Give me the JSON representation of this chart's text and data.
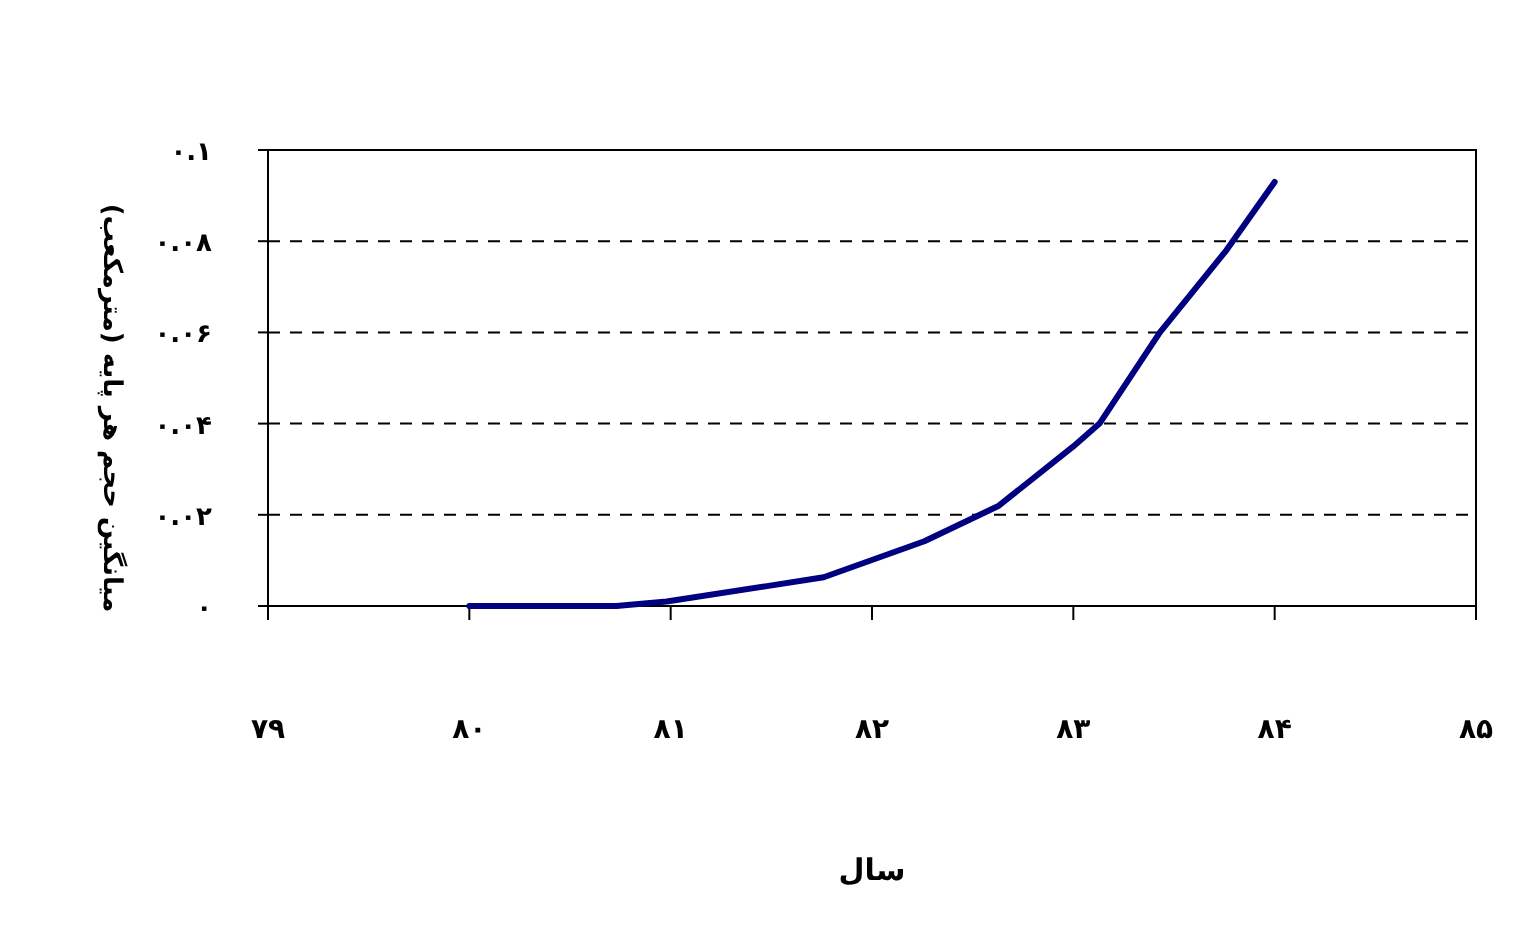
{
  "chart_data": {
    "type": "line",
    "xlabel": "سال",
    "ylabel": "میانگین حجم هر پایه (مترمکعب)",
    "x": [
      80,
      80.73,
      80.98,
      81.47,
      81.76,
      82.26,
      82.63,
      83.0,
      83.13,
      83.43,
      83.76,
      84.0
    ],
    "series": [
      {
        "color": "#000080",
        "values": [
          0,
          0,
          0.001,
          0.0043,
          0.0063,
          0.0142,
          0.022,
          0.035,
          0.04,
          0.06,
          0.078,
          0.093
        ]
      }
    ],
    "xlim": [
      79,
      85
    ],
    "xticks": [
      {
        "value": 79,
        "label": "۷۹"
      },
      {
        "value": 80,
        "label": "۸۰"
      },
      {
        "value": 81,
        "label": "۸۱"
      },
      {
        "value": 82,
        "label": "۸۲"
      },
      {
        "value": 83,
        "label": "۸۳"
      },
      {
        "value": 84,
        "label": "۸۴"
      },
      {
        "value": 85,
        "label": "۸۵"
      }
    ],
    "ylim": [
      0,
      0.1
    ],
    "yticks": [
      {
        "value": 0,
        "label": "۰"
      },
      {
        "value": 0.02,
        "label": "۰.۰۲"
      },
      {
        "value": 0.04,
        "label": "۰.۰۴"
      },
      {
        "value": 0.06,
        "label": "۰.۰۶"
      },
      {
        "value": 0.08,
        "label": "۰.۰۸"
      },
      {
        "value": 0.1,
        "label": "۰.۱"
      }
    ],
    "grid": "y"
  }
}
